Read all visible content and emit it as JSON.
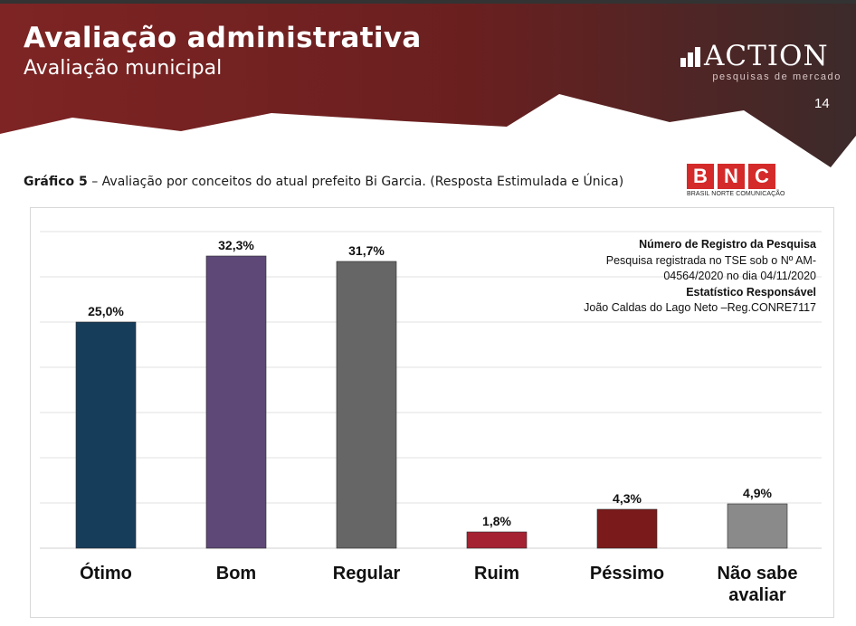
{
  "header": {
    "title": "Avaliação administrativa",
    "subtitle": "Avaliação municipal",
    "page_number": "14",
    "colors": {
      "band_dark": "#4a1515",
      "band_mid": "#7c2222",
      "band_edge": "#3a3a3a"
    }
  },
  "logo": {
    "name": "ACTION",
    "tagline": "pesquisas de mercado"
  },
  "caption": {
    "label": "Gráfico 5",
    "text": " – Avaliação por conceitos do atual prefeito Bi Garcia. (Resposta Estimulada e Única)"
  },
  "bnc": {
    "letters": [
      "B",
      "N",
      "C"
    ],
    "colors": [
      "#d42a2a",
      "#d42a2a",
      "#d42a2a"
    ],
    "label": "BRASIL NORTE COMUNICAÇÃO"
  },
  "registration": {
    "heading": "Número de Registro da Pesquisa",
    "line1": "Pesquisa registrada no TSE sob o Nº AM-",
    "line2": "04564/2020 no dia 04/11/2020",
    "heading2": "Estatístico Responsável",
    "line3": "João Caldas do Lago Neto –Reg.CONRE7117"
  },
  "chart_data": {
    "type": "bar",
    "categories": [
      "Ótimo",
      "Bom",
      "Regular",
      "Ruim",
      "Péssimo",
      "Não sabe avaliar"
    ],
    "category_lines": [
      [
        "Ótimo"
      ],
      [
        "Bom"
      ],
      [
        "Regular"
      ],
      [
        "Ruim"
      ],
      [
        "Péssimo"
      ],
      [
        "Não sabe",
        "avaliar"
      ]
    ],
    "values": [
      25.0,
      32.3,
      31.7,
      1.8,
      4.3,
      4.9
    ],
    "value_labels": [
      "25,0%",
      "32,3%",
      "31,7%",
      "1,8%",
      "4,3%",
      "4,9%"
    ],
    "colors": [
      "#163d5a",
      "#5e4877",
      "#666666",
      "#a52232",
      "#7b1a1a",
      "#8a8a8a"
    ],
    "ylim": [
      0,
      35
    ],
    "grid": true,
    "title": "",
    "xlabel": "",
    "ylabel": ""
  }
}
